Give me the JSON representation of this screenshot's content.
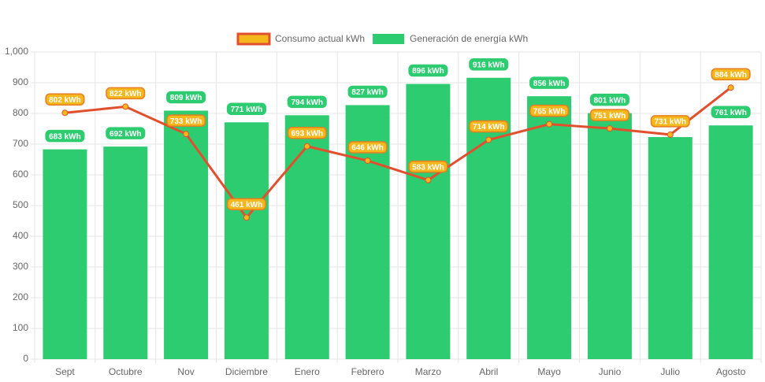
{
  "chart_data": {
    "type": "bar",
    "categories": [
      "Sept",
      "Octubre",
      "Nov",
      "Diciembre",
      "Enero",
      "Febrero",
      "Marzo",
      "Abril",
      "Mayo",
      "Junio",
      "Julio",
      "Agosto"
    ],
    "series": [
      {
        "name": "Consumo actual kWh",
        "type": "line",
        "color": "#e0502f",
        "point_color": "#f5b81c",
        "values": [
          802,
          822,
          733,
          461,
          693,
          646,
          583,
          714,
          765,
          751,
          731,
          884
        ],
        "value_labels": [
          "802 kWh",
          "822 kWh",
          "733 kWh",
          "461 kWh",
          "693 kWh",
          "646 kWh",
          "583 kWh",
          "714 kWh",
          "765 kWh",
          "751 kWh",
          "731 kWh",
          "884 kWh"
        ]
      },
      {
        "name": "Generación de energía kWh",
        "type": "bar",
        "color": "#2ecc71",
        "values": [
          683,
          692,
          809,
          771,
          794,
          827,
          896,
          916,
          856,
          801,
          723,
          761
        ],
        "value_labels": [
          "683 kWh",
          "692 kWh",
          "809 kWh",
          "771 kWh",
          "794 kWh",
          "827 kWh",
          "896 kWh",
          "916 kWh",
          "856 kWh",
          "801 kWh",
          null,
          "761 kWh"
        ]
      }
    ],
    "ylim": [
      0,
      1000
    ],
    "yticks": [
      0,
      100,
      200,
      300,
      400,
      500,
      600,
      700,
      800,
      900,
      {
        "value": 1000,
        "label": "1,000"
      }
    ],
    "grid": true,
    "legend": "top"
  }
}
